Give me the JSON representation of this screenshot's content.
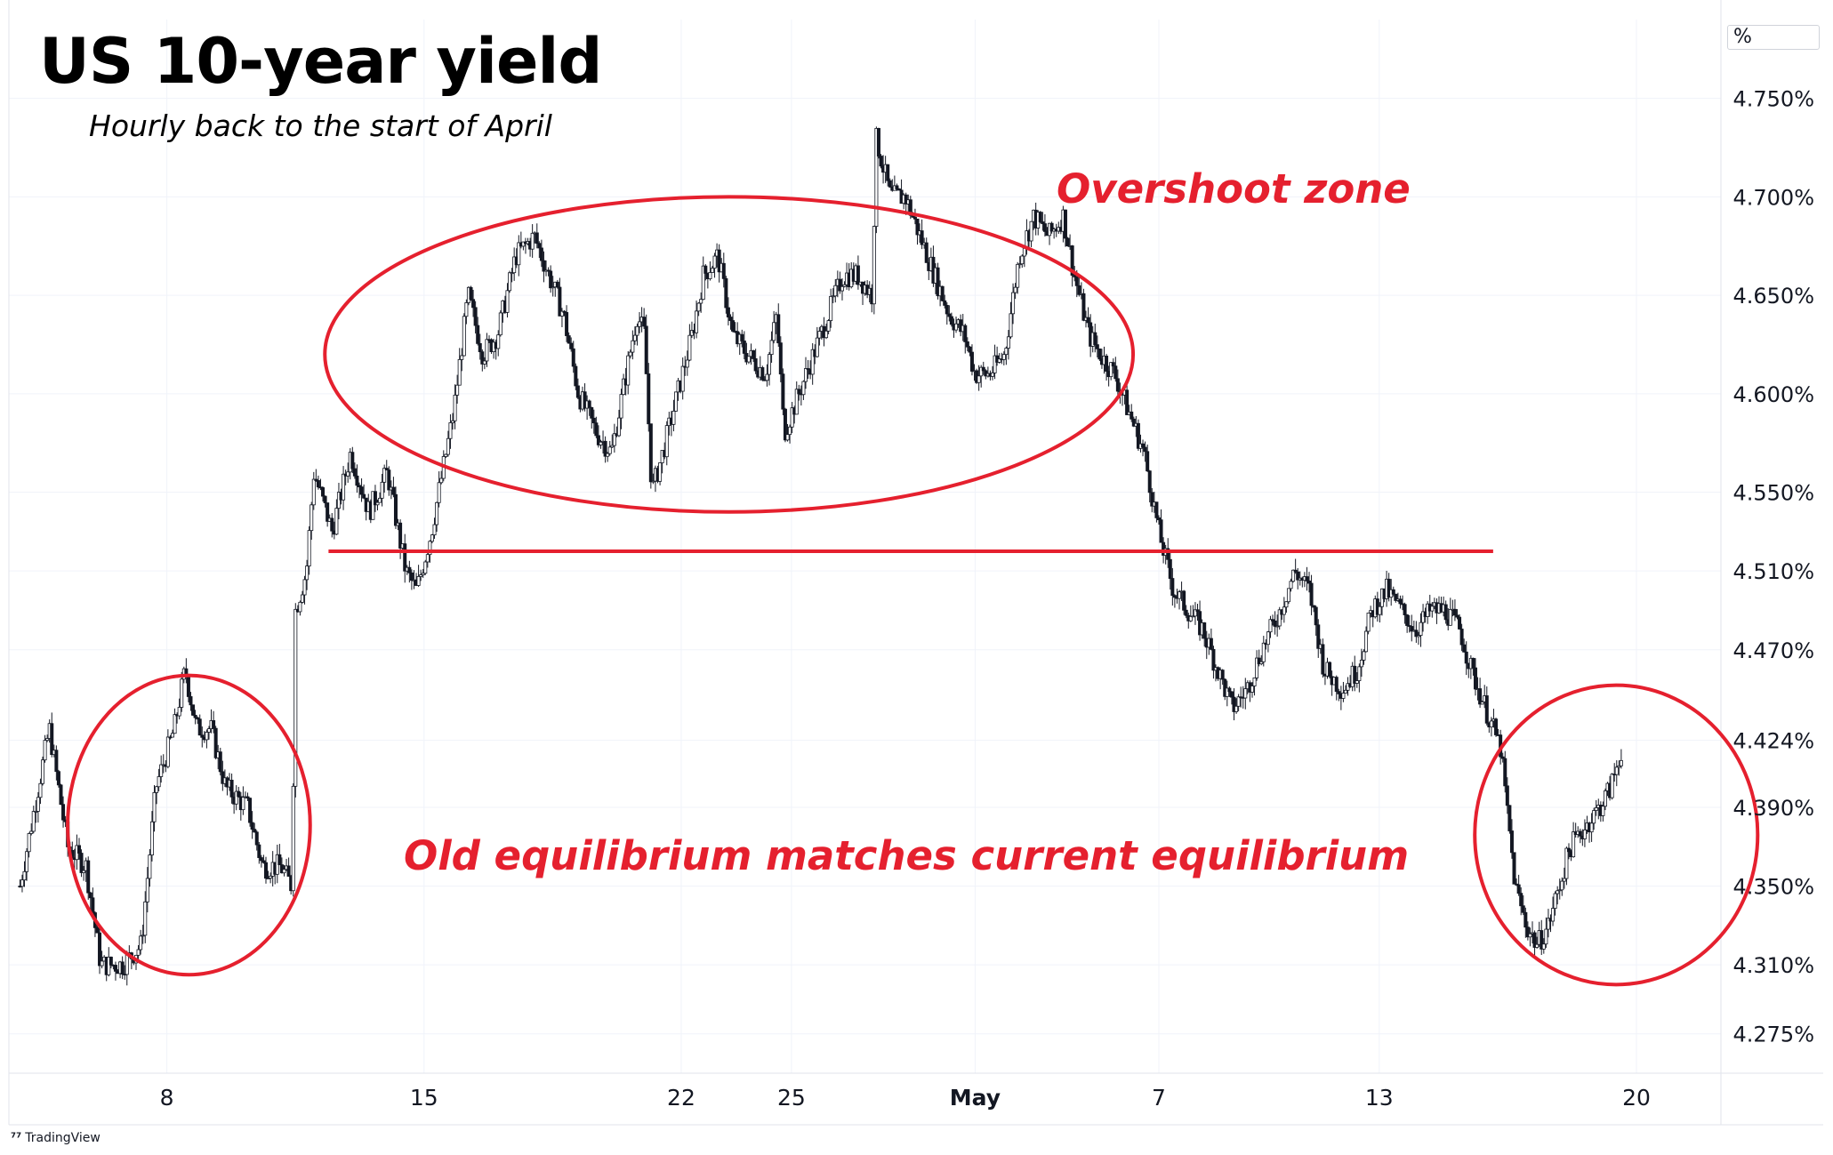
{
  "title": "US 10-year yield",
  "subtitle": "Hourly back to the start of April",
  "annotations": {
    "overshoot": "Overshoot zone",
    "equilibrium": "Old equilibrium matches current equilibrium"
  },
  "unit_label": "%",
  "watermark": "TradingView",
  "colors": {
    "annotation": "#e5202e",
    "candle": "#131722",
    "grid": "#f0f3fa",
    "axis_text": "#131722"
  },
  "chart_data": {
    "type": "candlestick",
    "title": "US 10-year yield",
    "subtitle": "Hourly back to the start of April",
    "x_tick_labels": [
      {
        "label": "8",
        "day": 8
      },
      {
        "label": "15",
        "day": 15
      },
      {
        "label": "22",
        "day": 22
      },
      {
        "label": "25",
        "day": 25
      },
      {
        "label": "May",
        "day": 30,
        "bold": true
      },
      {
        "label": "7",
        "day": 35
      },
      {
        "label": "13",
        "day": 41
      },
      {
        "label": "20",
        "day": 48
      }
    ],
    "y_tick_labels": [
      "4.750%",
      "4.700%",
      "4.650%",
      "4.600%",
      "4.550%",
      "4.510%",
      "4.470%",
      "4.424%",
      "4.390%",
      "4.350%",
      "4.310%",
      "4.275%"
    ],
    "y_ticks": [
      4.75,
      4.7,
      4.65,
      4.6,
      4.55,
      4.51,
      4.47,
      4.424,
      4.39,
      4.35,
      4.31,
      4.275
    ],
    "last_value_label": "4.424%",
    "ylim": [
      4.255,
      4.79
    ],
    "xlim": [
      3.7,
      50.3
    ],
    "price_path": [
      [
        4.0,
        4.35
      ],
      [
        4.8,
        4.43
      ],
      [
        5.3,
        4.37
      ],
      [
        5.8,
        4.36
      ],
      [
        6.2,
        4.31
      ],
      [
        6.8,
        4.31
      ],
      [
        7.3,
        4.32
      ],
      [
        7.7,
        4.4
      ],
      [
        8.2,
        4.43
      ],
      [
        8.5,
        4.46
      ],
      [
        8.8,
        4.43
      ],
      [
        9.2,
        4.43
      ],
      [
        9.6,
        4.4
      ],
      [
        10.2,
        4.39
      ],
      [
        10.6,
        4.36
      ],
      [
        11.1,
        4.36
      ],
      [
        11.4,
        4.35
      ],
      [
        11.5,
        4.49
      ],
      [
        11.8,
        4.51
      ],
      [
        12.0,
        4.56
      ],
      [
        12.5,
        4.53
      ],
      [
        13.0,
        4.57
      ],
      [
        13.5,
        4.54
      ],
      [
        14.0,
        4.56
      ],
      [
        14.5,
        4.51
      ],
      [
        14.8,
        4.5
      ],
      [
        15.2,
        4.53
      ],
      [
        15.5,
        4.56
      ],
      [
        15.8,
        4.59
      ],
      [
        16.2,
        4.65
      ],
      [
        16.6,
        4.62
      ],
      [
        17.0,
        4.63
      ],
      [
        17.5,
        4.67
      ],
      [
        18.0,
        4.68
      ],
      [
        18.4,
        4.66
      ],
      [
        18.8,
        4.64
      ],
      [
        19.2,
        4.6
      ],
      [
        19.7,
        4.58
      ],
      [
        20.1,
        4.57
      ],
      [
        20.5,
        4.61
      ],
      [
        20.8,
        4.64
      ],
      [
        21.0,
        4.63
      ],
      [
        21.2,
        4.55
      ],
      [
        21.5,
        4.57
      ],
      [
        21.9,
        4.6
      ],
      [
        22.3,
        4.63
      ],
      [
        22.6,
        4.66
      ],
      [
        23.0,
        4.67
      ],
      [
        23.4,
        4.63
      ],
      [
        23.8,
        4.62
      ],
      [
        24.3,
        4.61
      ],
      [
        24.6,
        4.64
      ],
      [
        24.8,
        4.58
      ],
      [
        25.2,
        4.6
      ],
      [
        25.6,
        4.62
      ],
      [
        26.0,
        4.64
      ],
      [
        26.4,
        4.66
      ],
      [
        26.8,
        4.66
      ],
      [
        27.2,
        4.65
      ],
      [
        27.3,
        4.73
      ],
      [
        27.7,
        4.7
      ],
      [
        28.1,
        4.7
      ],
      [
        28.5,
        4.68
      ],
      [
        28.9,
        4.66
      ],
      [
        29.3,
        4.64
      ],
      [
        29.7,
        4.63
      ],
      [
        30.0,
        4.61
      ],
      [
        30.4,
        4.61
      ],
      [
        30.8,
        4.62
      ],
      [
        31.2,
        4.67
      ],
      [
        31.6,
        4.69
      ],
      [
        32.0,
        4.68
      ],
      [
        32.4,
        4.69
      ],
      [
        32.7,
        4.66
      ],
      [
        33.1,
        4.63
      ],
      [
        33.4,
        4.62
      ],
      [
        33.8,
        4.61
      ],
      [
        34.2,
        4.59
      ],
      [
        34.6,
        4.57
      ],
      [
        35.0,
        4.53
      ],
      [
        35.4,
        4.5
      ],
      [
        35.8,
        4.49
      ],
      [
        36.2,
        4.48
      ],
      [
        36.6,
        4.46
      ],
      [
        37.0,
        4.44
      ],
      [
        37.4,
        4.45
      ],
      [
        37.8,
        4.47
      ],
      [
        38.3,
        4.49
      ],
      [
        38.7,
        4.51
      ],
      [
        39.1,
        4.5
      ],
      [
        39.5,
        4.46
      ],
      [
        40.0,
        4.45
      ],
      [
        40.4,
        4.46
      ],
      [
        40.8,
        4.49
      ],
      [
        41.2,
        4.5
      ],
      [
        41.6,
        4.49
      ],
      [
        42.0,
        4.48
      ],
      [
        42.4,
        4.49
      ],
      [
        42.8,
        4.49
      ],
      [
        43.2,
        4.48
      ],
      [
        43.5,
        4.46
      ],
      [
        43.9,
        4.44
      ],
      [
        44.3,
        4.42
      ],
      [
        44.7,
        4.35
      ],
      [
        45.0,
        4.33
      ],
      [
        45.3,
        4.32
      ],
      [
        45.6,
        4.33
      ],
      [
        45.9,
        4.35
      ],
      [
        46.2,
        4.37
      ],
      [
        46.6,
        4.38
      ],
      [
        47.0,
        4.39
      ],
      [
        47.3,
        4.4
      ],
      [
        47.6,
        4.42
      ]
    ],
    "trend_line": {
      "value": 4.52,
      "from_day": 12.4,
      "to_day": 44.1
    },
    "ellipses": [
      {
        "label": "overshoot",
        "from_day": 12.3,
        "to_day": 34.3,
        "from_value": 4.7,
        "to_value": 4.54
      },
      {
        "label": "april-low",
        "from_day": 5.3,
        "to_day": 11.9,
        "from_value": 4.457,
        "to_value": 4.305
      },
      {
        "label": "may-low",
        "from_day": 43.6,
        "to_day": 51.3,
        "from_value": 4.452,
        "to_value": 4.3
      }
    ]
  }
}
